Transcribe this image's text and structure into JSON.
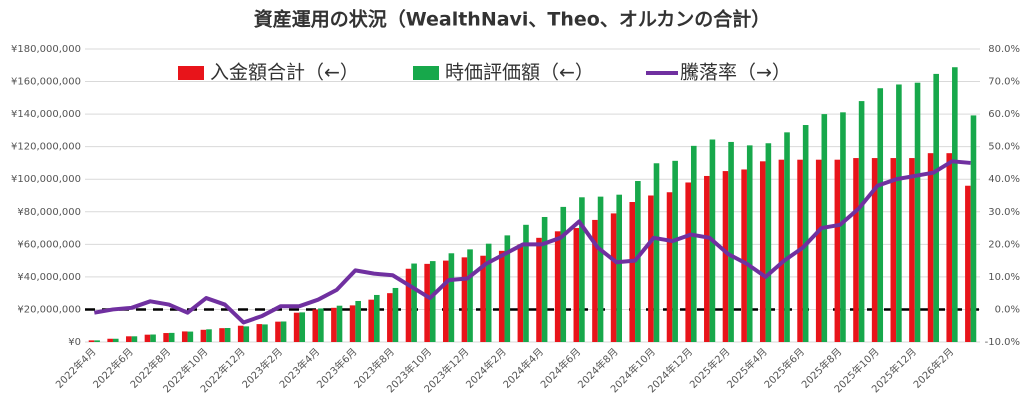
{
  "chart_data": {
    "type": "bar",
    "title": "資産運用の状況（WealthNavi、Theo、オルカンの合計）",
    "legend": "top",
    "categories": [
      "2022年4月",
      null,
      "2022年6月",
      null,
      "2022年8月",
      null,
      "2022年10月",
      null,
      "2022年12月",
      null,
      "2023年2月",
      null,
      "2023年4月",
      null,
      "2023年6月",
      null,
      "2023年8月",
      null,
      "2023年10月",
      null,
      "2023年12月",
      null,
      "2024年2月",
      null,
      "2024年4月",
      null,
      "2024年6月",
      null,
      "2024年8月",
      null,
      "2024年10月",
      null,
      "2024年12月",
      null,
      "2025年2月",
      null,
      "2025年4月",
      null,
      "2025年6月",
      null,
      "2025年8月",
      null,
      "2025年10月",
      null,
      "2025年12月",
      null,
      "2026年2月",
      null
    ],
    "series": [
      {
        "name": "入金額合計（←）",
        "type": "bar",
        "color": "#e8141a",
        "values": [
          1000000,
          2000000,
          3500000,
          4500000,
          5500000,
          6500000,
          7500000,
          8500000,
          10000000,
          11000000,
          12500000,
          18000000,
          20000000,
          21000000,
          22500000,
          26000000,
          30000000,
          45000000,
          48000000,
          50000000,
          52000000,
          53000000,
          56000000,
          60000000,
          64000000,
          68000000,
          70000000,
          75000000,
          79000000,
          86000000,
          90000000,
          92000000,
          98000000,
          102000000,
          105000000,
          106000000,
          111000000,
          112000000,
          112000000,
          112000000,
          112000000,
          113000000,
          113000000,
          113000000,
          113000000,
          116000000,
          116000000,
          96000000
        ]
      },
      {
        "name": "時価評価額（←）",
        "type": "bar",
        "color": "#17a84b",
        "values": [
          1000000,
          2000000,
          3500000,
          4600000,
          5600000,
          6400000,
          7800000,
          8600000,
          9600000,
          10800000,
          12600000,
          18200000,
          20600000,
          22300000,
          25200000,
          28900000,
          33200000,
          48200000,
          49700000,
          54500000,
          56900000,
          60400000,
          65500000,
          72000000,
          76800000,
          83000000,
          88900000,
          89300000,
          90500000,
          98900000,
          109800000,
          111300000,
          120500000,
          124400000,
          122900000,
          120800000,
          122100000,
          128800000,
          133300000,
          140000000,
          141100000,
          148000000,
          155900000,
          158200000,
          159300000,
          164700000,
          168800000,
          139200000
        ]
      },
      {
        "name": "騰落率（→）",
        "type": "line",
        "axis": "y2",
        "color": "#7030a0",
        "values": [
          -1,
          0,
          0.5,
          2.5,
          1.5,
          -1,
          3.5,
          1.5,
          -4,
          -2,
          1,
          1,
          3,
          6,
          12,
          11,
          10.5,
          7,
          3.5,
          9,
          9.5,
          14,
          17,
          20,
          20,
          22,
          27,
          19,
          14.5,
          15,
          22,
          21,
          23,
          22,
          17,
          14,
          10,
          15,
          19,
          25,
          26,
          31,
          38,
          40,
          41,
          42,
          45.5,
          45
        ]
      }
    ],
    "ylim": [
      0,
      180000000
    ],
    "yticks": [
      {
        "value": 0,
        "label": "¥0"
      },
      {
        "value": 20000000,
        "label": "¥20,000,000"
      },
      {
        "value": 40000000,
        "label": "¥40,000,000"
      },
      {
        "value": 60000000,
        "label": "¥60,000,000"
      },
      {
        "value": 80000000,
        "label": "¥80,000,000"
      },
      {
        "value": 100000000,
        "label": "¥100,000,000"
      },
      {
        "value": 120000000,
        "label": "¥120,000,000"
      },
      {
        "value": 140000000,
        "label": "¥140,000,000"
      },
      {
        "value": 160000000,
        "label": "¥160,000,000"
      },
      {
        "value": 180000000,
        "label": "¥180,000,000"
      }
    ],
    "y2lim": [
      -10,
      80
    ],
    "y2ticks": [
      {
        "value": -10,
        "label": "-10.0%"
      },
      {
        "value": 0,
        "label": "0.0%"
      },
      {
        "value": 10,
        "label": "10.0%"
      },
      {
        "value": 20,
        "label": "20.0%"
      },
      {
        "value": 30,
        "label": "30.0%"
      },
      {
        "value": 40,
        "label": "40.0%"
      },
      {
        "value": 50,
        "label": "50.0%"
      },
      {
        "value": 60,
        "label": "60.0%"
      },
      {
        "value": 70,
        "label": "70.0%"
      },
      {
        "value": 80,
        "label": "80.0%"
      }
    ],
    "grid": true
  }
}
